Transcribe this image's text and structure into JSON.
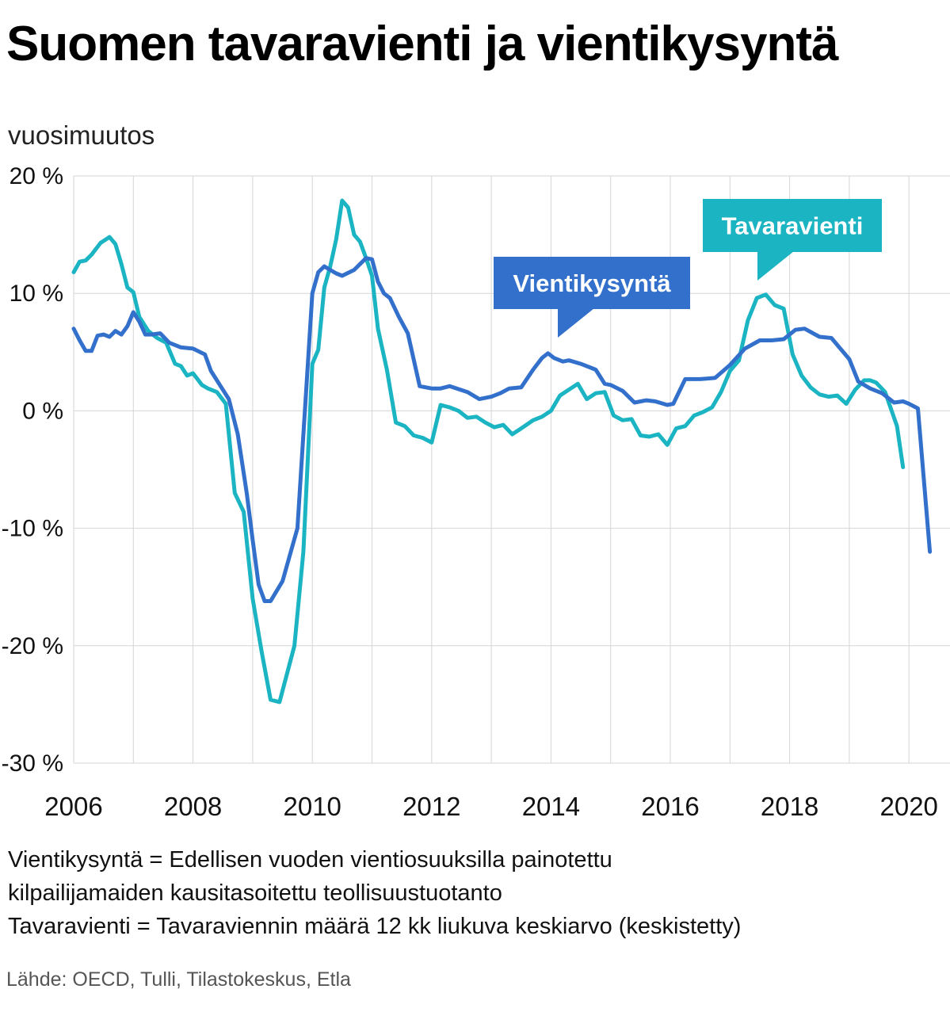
{
  "title": "Suomen tavaravienti ja vientikysyntä",
  "notes": [
    "Vientikysyntä = Edellisen vuoden vientiosuuksilla painotettu",
    "kilpailijamaiden kausitasoitettu teollisuustuotanto",
    "Tavaravienti = Tavaraviennin määrä 12 kk liukuva keskiarvo (keskistetty)"
  ],
  "source": "Lähde: OECD, Tulli, Tilastokeskus, Etla",
  "chart_data": {
    "type": "line",
    "title": "Suomen tavaravienti ja vientikysyntä",
    "ylabel": "vuosimuutos",
    "xlabel": "",
    "xlim": [
      2006,
      2020.35
    ],
    "ylim": [
      -30,
      20
    ],
    "yticks": [
      20,
      10,
      0,
      -10,
      -20,
      -30
    ],
    "ytick_labels": [
      "20 %",
      "10 %",
      "0 %",
      "-10 %",
      "-20 %",
      "-30 %"
    ],
    "xticks": [
      2006,
      2008,
      2010,
      2012,
      2014,
      2016,
      2018,
      2020
    ],
    "xtick_labels": [
      "2006",
      "2008",
      "2010",
      "2012",
      "2014",
      "2016",
      "2018",
      "2020"
    ],
    "grid": true,
    "series": [
      {
        "name": "Vientikysyntä",
        "color": "#3370CC",
        "label_position": "above",
        "x": [
          2006.0,
          2006.1,
          2006.2,
          2006.3,
          2006.4,
          2006.5,
          2006.6,
          2006.7,
          2006.8,
          2006.9,
          2007.0,
          2007.1,
          2007.2,
          2007.3,
          2007.45,
          2007.6,
          2007.8,
          2008.0,
          2008.2,
          2008.3,
          2008.45,
          2008.6,
          2008.75,
          2008.9,
          2009.0,
          2009.1,
          2009.2,
          2009.3,
          2009.5,
          2009.75,
          2010.0,
          2010.1,
          2010.2,
          2010.3,
          2010.4,
          2010.5,
          2010.7,
          2010.9,
          2011.0,
          2011.1,
          2011.2,
          2011.3,
          2011.45,
          2011.6,
          2011.8,
          2012.0,
          2012.15,
          2012.3,
          2012.6,
          2012.8,
          2013.0,
          2013.15,
          2013.3,
          2013.5,
          2013.7,
          2013.85,
          2013.95,
          2014.05,
          2014.2,
          2014.3,
          2014.5,
          2014.75,
          2014.9,
          2015.0,
          2015.2,
          2015.4,
          2015.6,
          2015.75,
          2015.95,
          2016.05,
          2016.25,
          2016.5,
          2016.75,
          2017.0,
          2017.25,
          2017.5,
          2017.7,
          2017.9,
          2018.1,
          2018.25,
          2018.5,
          2018.7,
          2018.85,
          2019.0,
          2019.15,
          2019.35,
          2019.55,
          2019.75,
          2019.9,
          2020.0,
          2020.15,
          2020.35
        ],
        "values": [
          7.0,
          6.0,
          5.1,
          5.1,
          6.4,
          6.5,
          6.3,
          6.8,
          6.5,
          7.2,
          8.4,
          7.6,
          6.5,
          6.5,
          6.6,
          5.8,
          5.4,
          5.3,
          4.8,
          3.4,
          2.2,
          1.0,
          -2.0,
          -7.0,
          -11.0,
          -14.8,
          -16.2,
          -16.2,
          -14.5,
          -10.0,
          10.0,
          11.8,
          12.3,
          12.0,
          11.7,
          11.5,
          12.0,
          13.0,
          12.9,
          11.0,
          10.0,
          9.6,
          8.0,
          6.6,
          2.1,
          1.9,
          1.9,
          2.1,
          1.6,
          1.0,
          1.2,
          1.5,
          1.9,
          2.0,
          3.5,
          4.5,
          4.9,
          4.5,
          4.2,
          4.3,
          4.0,
          3.5,
          2.3,
          2.2,
          1.7,
          0.7,
          0.9,
          0.8,
          0.5,
          0.6,
          2.7,
          2.7,
          2.8,
          3.9,
          5.3,
          6.0,
          6.0,
          6.1,
          6.9,
          7.0,
          6.3,
          6.2,
          5.3,
          4.4,
          2.5,
          1.9,
          1.5,
          0.7,
          0.8,
          0.6,
          0.2,
          -12.0
        ]
      },
      {
        "name": "Tavaravienti",
        "color": "#1BB4C3",
        "label_position": "above",
        "x": [
          2006.0,
          2006.1,
          2006.2,
          2006.3,
          2006.45,
          2006.6,
          2006.7,
          2006.8,
          2006.9,
          2007.0,
          2007.1,
          2007.25,
          2007.4,
          2007.55,
          2007.7,
          2007.8,
          2007.9,
          2008.0,
          2008.15,
          2008.25,
          2008.4,
          2008.55,
          2008.7,
          2008.85,
          2009.0,
          2009.15,
          2009.3,
          2009.45,
          2009.7,
          2009.85,
          2010.0,
          2010.1,
          2010.2,
          2010.3,
          2010.4,
          2010.5,
          2010.6,
          2010.7,
          2010.8,
          2010.9,
          2011.0,
          2011.1,
          2011.25,
          2011.4,
          2011.55,
          2011.7,
          2011.85,
          2012.0,
          2012.15,
          2012.3,
          2012.45,
          2012.6,
          2012.75,
          2012.9,
          2013.05,
          2013.2,
          2013.35,
          2013.5,
          2013.7,
          2013.85,
          2014.0,
          2014.15,
          2014.3,
          2014.45,
          2014.6,
          2014.75,
          2014.9,
          2015.05,
          2015.2,
          2015.35,
          2015.5,
          2015.65,
          2015.8,
          2015.95,
          2016.1,
          2016.25,
          2016.4,
          2016.55,
          2016.7,
          2016.85,
          2017.0,
          2017.15,
          2017.3,
          2017.45,
          2017.6,
          2017.75,
          2017.9,
          2018.05,
          2018.2,
          2018.35,
          2018.5,
          2018.65,
          2018.8,
          2018.95,
          2019.1,
          2019.25,
          2019.35,
          2019.45,
          2019.6,
          2019.8,
          2019.9
        ],
        "values": [
          11.8,
          12.7,
          12.8,
          13.3,
          14.3,
          14.8,
          14.2,
          12.5,
          10.5,
          10.1,
          8.0,
          6.8,
          6.2,
          5.8,
          4.0,
          3.8,
          3.0,
          3.2,
          2.2,
          1.9,
          1.6,
          0.6,
          -7.0,
          -8.6,
          -16.0,
          -20.5,
          -24.6,
          -24.8,
          -20.0,
          -12.0,
          4.0,
          5.2,
          10.5,
          12.3,
          14.6,
          17.9,
          17.3,
          15.0,
          14.4,
          13.0,
          11.5,
          7.0,
          3.5,
          -1.0,
          -1.3,
          -2.1,
          -2.3,
          -2.7,
          0.5,
          0.3,
          0.0,
          -0.6,
          -0.5,
          -1.0,
          -1.4,
          -1.2,
          -2.0,
          -1.5,
          -0.8,
          -0.5,
          0.0,
          1.3,
          1.8,
          2.3,
          1.0,
          1.5,
          1.6,
          -0.4,
          -0.8,
          -0.7,
          -2.1,
          -2.2,
          -2.0,
          -2.9,
          -1.5,
          -1.3,
          -0.4,
          -0.1,
          0.3,
          1.6,
          3.4,
          4.3,
          7.7,
          9.6,
          9.9,
          9.0,
          8.7,
          4.8,
          3.0,
          2.0,
          1.4,
          1.2,
          1.3,
          0.6,
          1.8,
          2.6,
          2.6,
          2.4,
          1.6,
          -1.3,
          -4.8
        ]
      }
    ],
    "legend": "callout labels on lines"
  }
}
